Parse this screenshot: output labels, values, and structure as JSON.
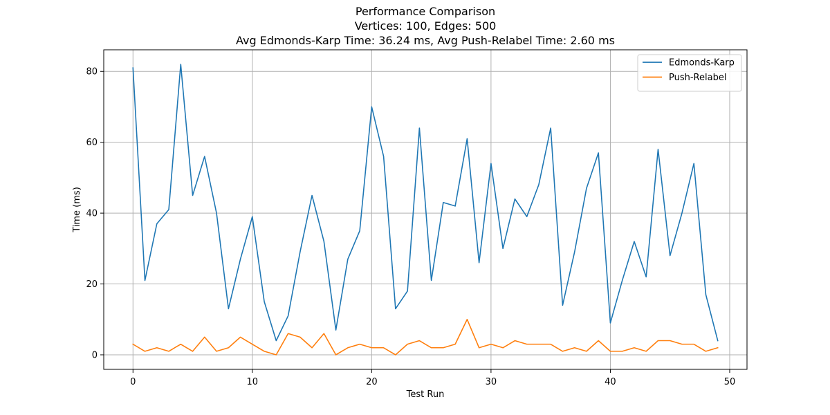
{
  "chart_data": {
    "type": "line",
    "title_lines": [
      "Performance Comparison",
      "Vertices: 100, Edges: 500",
      "Avg Edmonds-Karp Time: 36.24 ms, Avg Push-Relabel Time: 2.60 ms"
    ],
    "xlabel": "Test Run",
    "ylabel": "Time (ms)",
    "xlim": [
      -2.45,
      51.45
    ],
    "ylim": [
      -4.1,
      86.1
    ],
    "xticks": [
      0,
      10,
      20,
      30,
      40,
      50
    ],
    "yticks": [
      0,
      20,
      40,
      60,
      80
    ],
    "grid": true,
    "legend_position": "top-right",
    "x": [
      0,
      1,
      2,
      3,
      4,
      5,
      6,
      7,
      8,
      9,
      10,
      11,
      12,
      13,
      14,
      15,
      16,
      17,
      18,
      19,
      20,
      21,
      22,
      23,
      24,
      25,
      26,
      27,
      28,
      29,
      30,
      31,
      32,
      33,
      34,
      35,
      36,
      37,
      38,
      39,
      40,
      41,
      42,
      43,
      44,
      45,
      46,
      47,
      48,
      49
    ],
    "series": [
      {
        "name": "Edmonds-Karp",
        "color": "#1f77b4",
        "values": [
          81,
          21,
          37,
          41,
          82,
          45,
          56,
          40,
          13,
          27,
          39,
          15,
          4,
          11,
          29,
          45,
          32,
          7,
          27,
          35,
          70,
          56,
          13,
          18,
          64,
          21,
          43,
          42,
          61,
          26,
          54,
          30,
          44,
          39,
          48,
          64,
          14,
          29,
          47,
          57,
          9,
          21,
          32,
          22,
          58,
          28,
          40,
          54,
          17,
          4
        ]
      },
      {
        "name": "Push-Relabel",
        "color": "#ff7f0e",
        "values": [
          3,
          1,
          2,
          1,
          3,
          1,
          5,
          1,
          2,
          5,
          3,
          1,
          0,
          6,
          5,
          2,
          6,
          0,
          2,
          3,
          2,
          2,
          0,
          3,
          4,
          2,
          2,
          3,
          10,
          2,
          3,
          2,
          4,
          3,
          3,
          3,
          1,
          2,
          1,
          4,
          1,
          1,
          2,
          1,
          4,
          4,
          3,
          3,
          1,
          2
        ]
      }
    ]
  }
}
